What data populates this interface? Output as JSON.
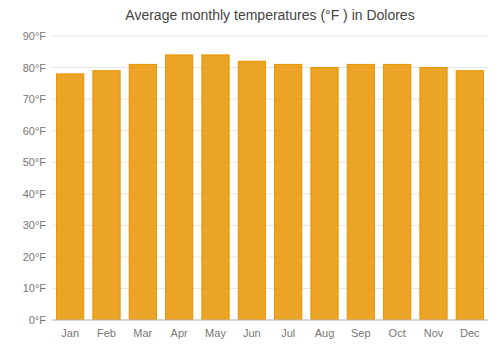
{
  "chart_data": {
    "type": "bar",
    "title": "Average monthly temperatures (°F ) in Dolores",
    "categories": [
      "Jan",
      "Feb",
      "Mar",
      "Apr",
      "May",
      "Jun",
      "Jul",
      "Aug",
      "Sep",
      "Oct",
      "Nov",
      "Dec"
    ],
    "values": [
      78,
      79,
      81,
      84,
      84,
      82,
      81,
      80,
      81,
      81,
      80,
      79
    ],
    "color": "#E89400",
    "ylim": [
      0,
      90
    ],
    "yticks": [
      {
        "value": 0,
        "label": "0°F"
      },
      {
        "value": 10,
        "label": "10°F"
      },
      {
        "value": 20,
        "label": "20°F"
      },
      {
        "value": 30,
        "label": "30°F"
      },
      {
        "value": 40,
        "label": "40°F"
      },
      {
        "value": 50,
        "label": "50°F"
      },
      {
        "value": 60,
        "label": "60°F"
      },
      {
        "value": 70,
        "label": "70°F"
      },
      {
        "value": 80,
        "label": "80°F"
      },
      {
        "value": 90,
        "label": "90°F"
      }
    ],
    "grid": true
  }
}
